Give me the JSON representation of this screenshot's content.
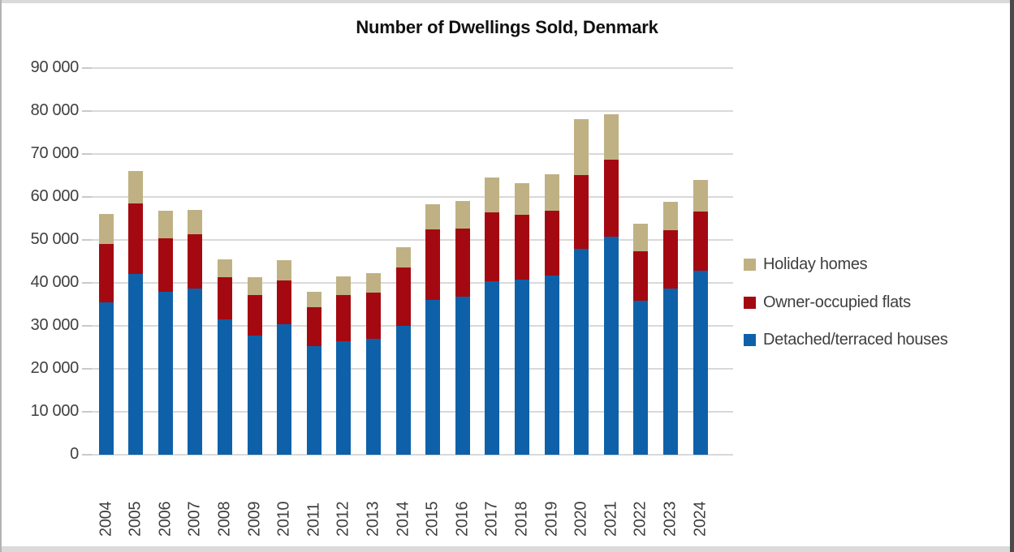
{
  "chart_data": {
    "type": "bar",
    "stacked": true,
    "title": "Number of Dwellings Sold, Denmark",
    "categories": [
      "2004",
      "2005",
      "2006",
      "2007",
      "2008",
      "2009",
      "2010",
      "2011",
      "2012",
      "2013",
      "2014",
      "2015",
      "2016",
      "2017",
      "2018",
      "2019",
      "2020",
      "2021",
      "2022",
      "2023",
      "2024"
    ],
    "series": [
      {
        "name": "Detached/terraced houses",
        "color": "#0e61a9",
        "values": [
          35500,
          42000,
          38000,
          38700,
          31500,
          27800,
          30400,
          25200,
          26400,
          26900,
          30000,
          36100,
          36700,
          40400,
          40800,
          41700,
          48000,
          50700,
          35900,
          38600,
          42900
        ]
      },
      {
        "name": "Owner-occupied flats",
        "color": "#a40911",
        "values": [
          13500,
          16500,
          12300,
          12600,
          9900,
          9300,
          10200,
          9200,
          10800,
          10900,
          13600,
          16300,
          15900,
          16100,
          15000,
          15000,
          17000,
          17900,
          11500,
          13600,
          13700
        ]
      },
      {
        "name": "Holiday homes",
        "color": "#bfb183",
        "values": [
          7000,
          7600,
          6400,
          5700,
          4100,
          4200,
          4700,
          3600,
          4400,
          4500,
          4700,
          5900,
          6400,
          8000,
          7400,
          8600,
          13200,
          10700,
          6300,
          6600,
          7300
        ]
      }
    ],
    "ylim": [
      0,
      90000
    ],
    "ytick_labels": [
      "0",
      "10 000",
      "20 000",
      "30 000",
      "40 000",
      "50 000",
      "60 000",
      "70 000",
      "80 000",
      "90 000"
    ],
    "grid": true,
    "legend_position": "right",
    "legend_order": [
      "Holiday homes",
      "Owner-occupied flats",
      "Detached/terraced houses"
    ],
    "axis_text_color": "#3f3f3f",
    "gridline_color": "#d9d9d9"
  }
}
